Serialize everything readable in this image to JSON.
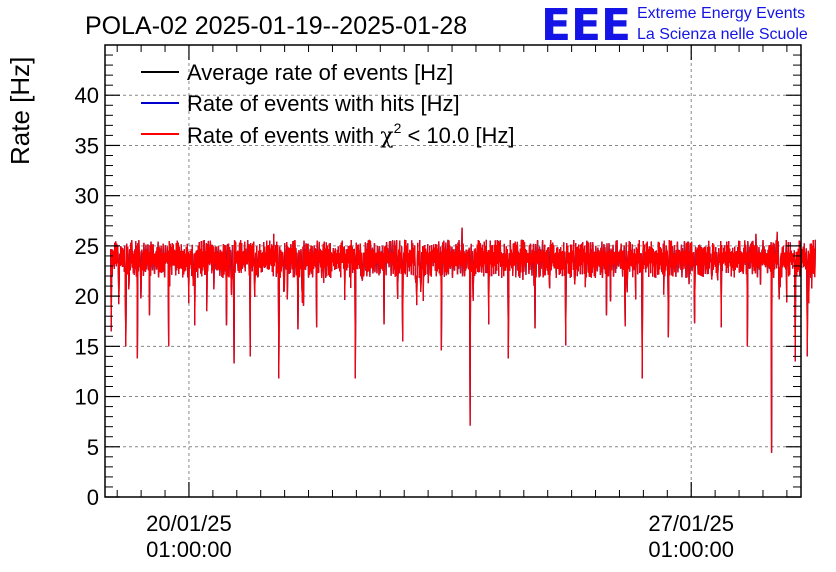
{
  "chart_data": {
    "type": "line",
    "title": "POLA-02 2025-01-19--2025-01-28",
    "xlabel": "",
    "ylabel": "Rate [Hz]",
    "ylim": [
      0,
      45
    ],
    "yticks": [
      0,
      5,
      10,
      15,
      20,
      25,
      30,
      35,
      40
    ],
    "ytick_labels": [
      "0",
      "5",
      "10",
      "15",
      "20",
      "25",
      "30",
      "35",
      "40"
    ],
    "xlim_days": [
      -1.17,
      8.53
    ],
    "xticks_days": [
      0,
      7
    ],
    "xtick_labels": [
      {
        "date": "20/01/25",
        "time": "01:00:00"
      },
      {
        "date": "27/01/25",
        "time": "01:00:00"
      }
    ],
    "grid": true,
    "legend_position": "top-left",
    "series": [
      {
        "name": "Average rate of events [Hz]",
        "color": "#000000"
      },
      {
        "name": "Rate of events with hits [Hz]",
        "color": "#0000cc"
      },
      {
        "name_prefix": "Rate of events with ",
        "name_symbol": "χ",
        "name_sup": "2",
        "name_suffix": " < 10.0 [Hz]",
        "color": "#ff0000"
      }
    ],
    "data_range_days": [
      -1.09,
      8.73
    ],
    "baseline_hz": 23.8,
    "band_hz": [
      21.8,
      25.6
    ],
    "dips": [
      {
        "t": -1.08,
        "v": 16.5
      },
      {
        "t": -0.98,
        "v": 19.2
      },
      {
        "t": -0.88,
        "v": 15.0
      },
      {
        "t": -0.72,
        "v": 13.8
      },
      {
        "t": -0.55,
        "v": 18.1
      },
      {
        "t": -0.28,
        "v": 15.0
      },
      {
        "t": 0.08,
        "v": 17.1
      },
      {
        "t": 0.25,
        "v": 18.5
      },
      {
        "t": 0.52,
        "v": 17.1
      },
      {
        "t": 0.63,
        "v": 13.3
      },
      {
        "t": 0.85,
        "v": 14.0
      },
      {
        "t": 1.25,
        "v": 11.8
      },
      {
        "t": 1.52,
        "v": 16.7
      },
      {
        "t": 1.78,
        "v": 16.9
      },
      {
        "t": 2.32,
        "v": 11.8
      },
      {
        "t": 2.72,
        "v": 17.2
      },
      {
        "t": 2.98,
        "v": 15.5
      },
      {
        "t": 3.52,
        "v": 14.6
      },
      {
        "t": 3.92,
        "v": 7.1
      },
      {
        "t": 4.18,
        "v": 17.2
      },
      {
        "t": 4.45,
        "v": 13.8
      },
      {
        "t": 4.82,
        "v": 16.8
      },
      {
        "t": 5.25,
        "v": 15.1
      },
      {
        "t": 5.82,
        "v": 18.1
      },
      {
        "t": 6.08,
        "v": 17.0
      },
      {
        "t": 6.32,
        "v": 11.8
      },
      {
        "t": 6.68,
        "v": 15.9
      },
      {
        "t": 7.05,
        "v": 17.3
      },
      {
        "t": 7.42,
        "v": 16.9
      },
      {
        "t": 7.78,
        "v": 15.0
      },
      {
        "t": 8.12,
        "v": 4.4
      },
      {
        "t": 8.45,
        "v": 13.5
      },
      {
        "t": 8.62,
        "v": 14.0
      }
    ],
    "peaks": [
      {
        "t": 3.8,
        "v": 26.8
      },
      {
        "t": 1.18,
        "v": 26.2
      },
      {
        "t": 8.2,
        "v": 26.4
      },
      {
        "t": 7.9,
        "v": 26.2
      }
    ]
  },
  "logo": {
    "mark": "EEE",
    "line1": "Extreme Energy Events",
    "line2": "La Scienza nelle Scuole",
    "color": "#1414e6"
  }
}
